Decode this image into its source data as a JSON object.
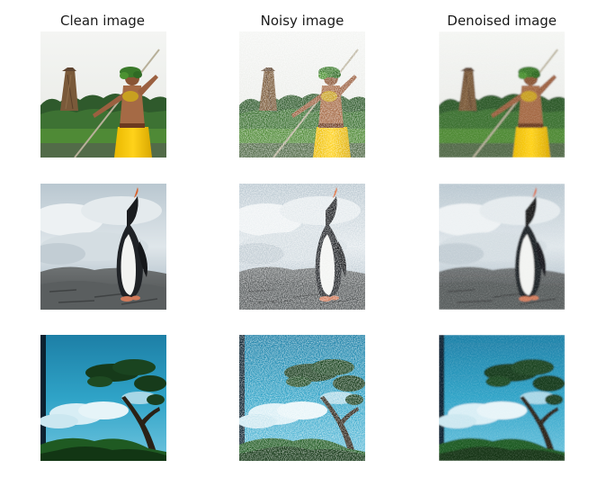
{
  "columns": [
    {
      "title": "Clean image",
      "variant": "clean"
    },
    {
      "title": "Noisy image",
      "variant": "noisy"
    },
    {
      "title": "Denoised image",
      "variant": "denoised"
    }
  ],
  "rows": [
    {
      "scene": "warrior-with-spear-and-hut"
    },
    {
      "scene": "penguin-on-rocks"
    },
    {
      "scene": "tree-on-hill-with-blue-sky"
    }
  ]
}
